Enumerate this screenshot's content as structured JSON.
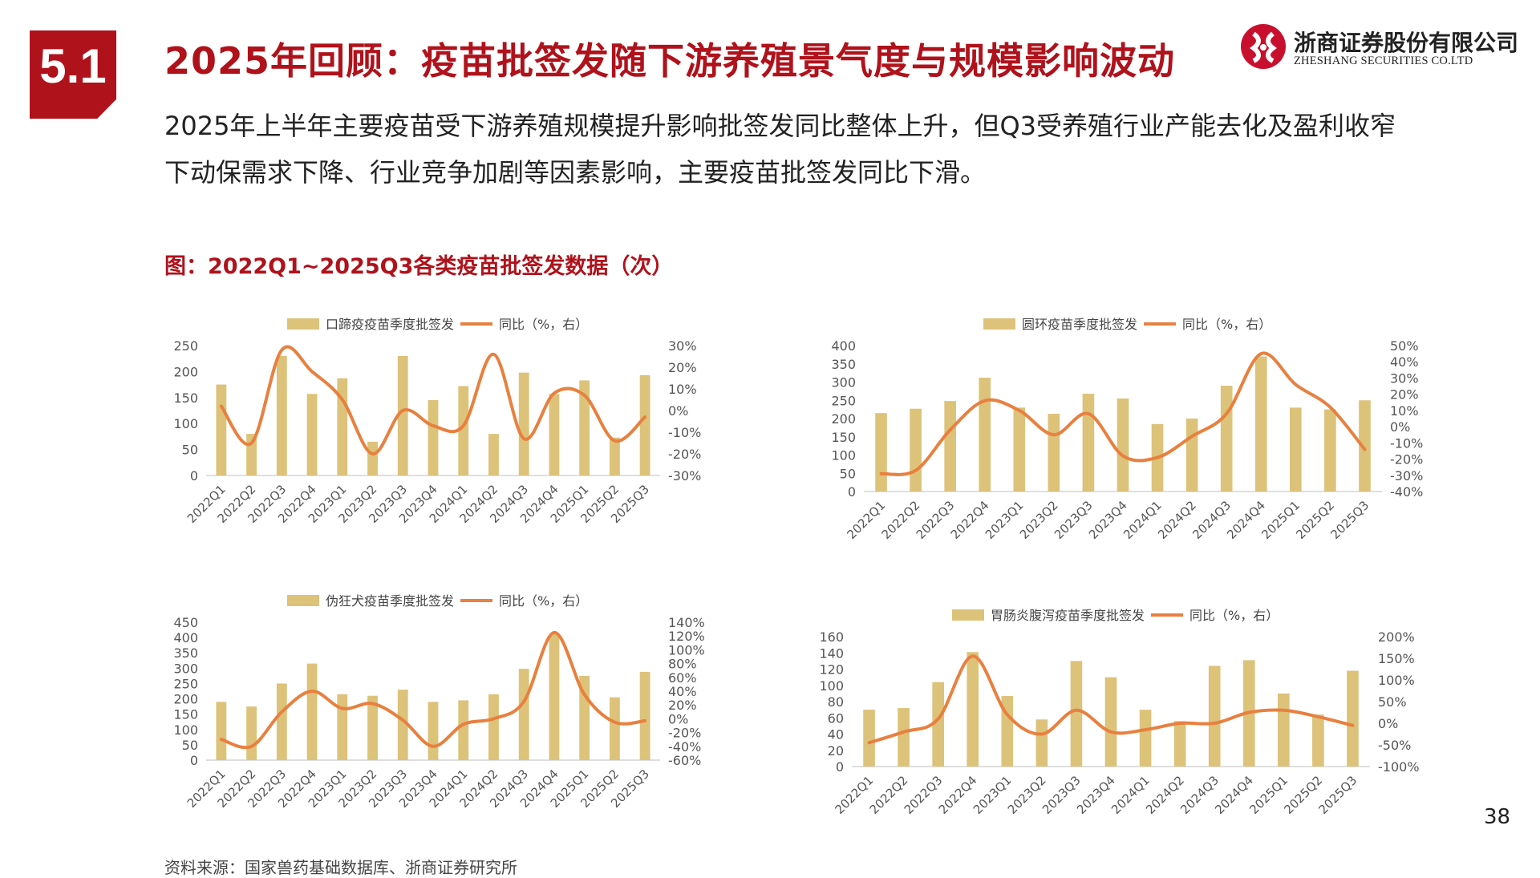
{
  "header": {
    "section_number": "5.1",
    "title": "2025年回顾：疫苗批签发随下游养殖景气度与规模影响波动"
  },
  "logo": {
    "name_cn": "浙商证券股份有限公司",
    "name_en": "ZHESHANG SECURITIES CO.LTD"
  },
  "summary": "2025年上半年主要疫苗受下游养殖规模提升影响批签发同比整体上升，但Q3受养殖行业产能去化及盈利收窄下动保需求下降、行业竞争加剧等因素影响，主要疫苗批签发同比下滑。",
  "figure_title": "图：2022Q1~2025Q3各类疫苗批签发数据（次）",
  "source": "资料来源：国家兽药基础数据库、浙商证券研究所",
  "page_number": "38",
  "colors": {
    "bar": "#DDC27A",
    "line": "#E8803F",
    "accent": "#B0121B"
  },
  "chart_data": [
    {
      "type": "bar",
      "categories": [
        "2022Q1",
        "2022Q2",
        "2022Q3",
        "2022Q4",
        "2023Q1",
        "2023Q2",
        "2023Q3",
        "2023Q4",
        "2024Q1",
        "2024Q2",
        "2024Q3",
        "2024Q4",
        "2025Q1",
        "2025Q2",
        "2025Q3"
      ],
      "series": [
        {
          "name": "口蹄疫疫苗季度批签发",
          "axis": "left",
          "values": [
            175,
            80,
            230,
            157,
            187,
            65,
            230,
            145,
            172,
            80,
            198,
            157,
            183,
            73,
            193
          ]
        },
        {
          "name": "同比（%，右）",
          "axis": "right",
          "type": "line",
          "values": [
            2,
            -15,
            28,
            18,
            5,
            -20,
            0,
            -7,
            -7,
            26,
            -13,
            8,
            7,
            -14,
            -3
          ]
        }
      ],
      "ylim": [
        0,
        250
      ],
      "yticks": [
        "0",
        "50",
        "100",
        "150",
        "200",
        "250"
      ],
      "y2lim": [
        -30,
        30
      ],
      "y2ticks": [
        "-30%",
        "-20%",
        "-10%",
        "0%",
        "10%",
        "20%",
        "30%"
      ],
      "legend": "top"
    },
    {
      "type": "bar",
      "categories": [
        "2022Q1",
        "2022Q2",
        "2022Q3",
        "2022Q4",
        "2023Q1",
        "2023Q2",
        "2023Q3",
        "2023Q4",
        "2024Q1",
        "2024Q2",
        "2024Q3",
        "2024Q4",
        "2025Q1",
        "2025Q2",
        "2025Q3"
      ],
      "series": [
        {
          "name": "圆环疫苗季度批签发",
          "axis": "left",
          "values": [
            215,
            227,
            248,
            312,
            230,
            213,
            268,
            255,
            185,
            200,
            290,
            370,
            230,
            225,
            250
          ]
        },
        {
          "name": "同比（%，右）",
          "axis": "right",
          "type": "line",
          "values": [
            -29,
            -27,
            -2,
            16,
            10,
            -5,
            8,
            -18,
            -19,
            -6,
            8,
            45,
            26,
            12,
            -14
          ]
        }
      ],
      "ylim": [
        0,
        400
      ],
      "yticks": [
        "0",
        "50",
        "100",
        "150",
        "200",
        "250",
        "300",
        "350",
        "400"
      ],
      "y2lim": [
        -40,
        50
      ],
      "y2ticks": [
        "-40%",
        "-30%",
        "-20%",
        "-10%",
        "0%",
        "10%",
        "20%",
        "30%",
        "40%",
        "50%"
      ],
      "legend": "top"
    },
    {
      "type": "bar",
      "categories": [
        "2022Q1",
        "2022Q2",
        "2022Q3",
        "2022Q4",
        "2023Q1",
        "2023Q2",
        "2023Q3",
        "2023Q4",
        "2024Q1",
        "2024Q2",
        "2024Q3",
        "2024Q4",
        "2025Q1",
        "2025Q2",
        "2025Q3"
      ],
      "series": [
        {
          "name": "伪狂犬疫苗季度批签发",
          "axis": "left",
          "values": [
            190,
            175,
            250,
            315,
            215,
            210,
            230,
            190,
            195,
            215,
            298,
            412,
            275,
            205,
            288
          ]
        },
        {
          "name": "同比（%，右）",
          "axis": "right",
          "type": "line",
          "values": [
            -30,
            -40,
            10,
            40,
            15,
            22,
            -2,
            -40,
            -8,
            0,
            25,
            125,
            35,
            -5,
            -3
          ]
        }
      ],
      "ylim": [
        0,
        450
      ],
      "yticks": [
        "0",
        "50",
        "100",
        "150",
        "200",
        "250",
        "300",
        "350",
        "400",
        "450"
      ],
      "y2lim": [
        -60,
        140
      ],
      "y2ticks": [
        "-60%",
        "-40%",
        "-20%",
        "0%",
        "20%",
        "40%",
        "60%",
        "80%",
        "100%",
        "120%",
        "140%"
      ],
      "legend": "top"
    },
    {
      "type": "bar",
      "categories": [
        "2022Q1",
        "2022Q2",
        "2022Q3",
        "2022Q4",
        "2023Q1",
        "2023Q2",
        "2023Q3",
        "2023Q4",
        "2024Q1",
        "2024Q2",
        "2024Q3",
        "2024Q4",
        "2025Q1",
        "2025Q2",
        "2025Q3"
      ],
      "series": [
        {
          "name": "胃肠炎腹泻疫苗季度批签发",
          "axis": "left",
          "values": [
            70,
            72,
            104,
            141,
            87,
            58,
            130,
            110,
            70,
            56,
            124,
            131,
            90,
            64,
            118
          ]
        },
        {
          "name": "同比（%，右）",
          "axis": "right",
          "type": "line",
          "values": [
            -45,
            -20,
            10,
            155,
            20,
            -25,
            30,
            -20,
            -15,
            0,
            0,
            25,
            30,
            15,
            -5
          ]
        }
      ],
      "ylim": [
        0,
        160
      ],
      "yticks": [
        "0",
        "20",
        "40",
        "60",
        "80",
        "100",
        "120",
        "140",
        "160"
      ],
      "y2lim": [
        -100,
        200
      ],
      "y2ticks": [
        "-100%",
        "-50%",
        "0%",
        "50%",
        "100%",
        "150%",
        "200%"
      ],
      "legend": "top"
    }
  ]
}
